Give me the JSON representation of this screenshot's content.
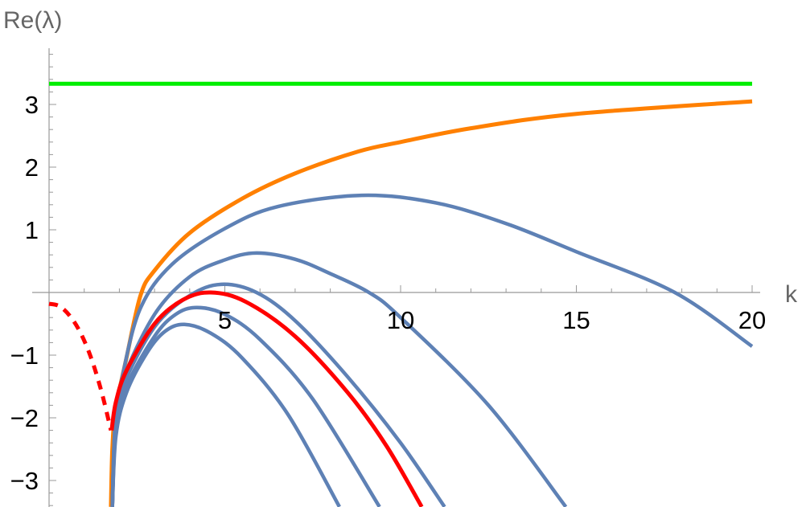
{
  "chart_data": {
    "type": "line",
    "title": "",
    "xlabel": "k",
    "ylabel": "Re(λ)",
    "xlim": [
      0,
      20
    ],
    "ylim": [
      -3.42,
      3.9
    ],
    "x_ticks": [
      5,
      10,
      15,
      20
    ],
    "y_ticks": [
      -3,
      -2,
      -1,
      1,
      2,
      3
    ],
    "x_tick_labels": [
      "5",
      "10",
      "15",
      "20"
    ],
    "y_tick_labels": [
      "−3",
      "−2",
      "−1",
      "1",
      "2",
      "3"
    ],
    "grid": false,
    "legend": "none",
    "series": [
      {
        "color": "#00ee00",
        "style": "solid",
        "points": [
          [
            0,
            3.33
          ],
          [
            20,
            3.33
          ]
        ]
      },
      {
        "color": "#ff8000",
        "style": "solid",
        "points": [
          [
            1.76,
            -3.42
          ],
          [
            1.8,
            -2.5
          ],
          [
            1.9,
            -1.85
          ],
          [
            2.2,
            -1.05
          ],
          [
            2.6,
            -0.05
          ],
          [
            3,
            0.35
          ],
          [
            4,
            0.95
          ],
          [
            5.5,
            1.5
          ],
          [
            7,
            1.9
          ],
          [
            8.8,
            2.25
          ],
          [
            10,
            2.4
          ],
          [
            12,
            2.62
          ],
          [
            15,
            2.85
          ],
          [
            20,
            3.05
          ]
        ]
      },
      {
        "color": "#5e81b5",
        "style": "solid",
        "points": [
          [
            1.8,
            -3.42
          ],
          [
            1.88,
            -2.1
          ],
          [
            2.1,
            -1.3
          ],
          [
            2.6,
            -0.25
          ],
          [
            3.5,
            0.45
          ],
          [
            5,
            1.02
          ],
          [
            6.5,
            1.37
          ],
          [
            8.9,
            1.55
          ],
          [
            11,
            1.43
          ],
          [
            13,
            1.1
          ],
          [
            15,
            0.65
          ],
          [
            17.8,
            0
          ],
          [
            20,
            -0.86
          ]
        ]
      },
      {
        "color": "#5e81b5",
        "style": "solid",
        "points": [
          [
            1.8,
            -3.42
          ],
          [
            1.88,
            -2.1
          ],
          [
            2.1,
            -1.4
          ],
          [
            3,
            -0.35
          ],
          [
            4,
            0.25
          ],
          [
            5,
            0.52
          ],
          [
            5.9,
            0.63
          ],
          [
            7,
            0.53
          ],
          [
            8,
            0.3
          ],
          [
            9.1,
            0
          ],
          [
            10,
            -0.4
          ],
          [
            12.5,
            -1.8
          ],
          [
            14.7,
            -3.42
          ]
        ]
      },
      {
        "color": "#5e81b5",
        "style": "solid",
        "points": [
          [
            1.8,
            -3.42
          ],
          [
            1.88,
            -2.15
          ],
          [
            2.1,
            -1.5
          ],
          [
            3,
            -0.55
          ],
          [
            4,
            -0.05
          ],
          [
            4.9,
            0.13
          ],
          [
            5.9,
            0
          ],
          [
            7,
            -0.45
          ],
          [
            8.5,
            -1.35
          ],
          [
            10,
            -2.4
          ],
          [
            11.25,
            -3.42
          ]
        ]
      },
      {
        "color": "#ff0000",
        "style": "solid",
        "points": [
          [
            1.78,
            -2.2
          ],
          [
            1.9,
            -1.75
          ],
          [
            2.2,
            -1.25
          ],
          [
            3,
            -0.5
          ],
          [
            3.8,
            -0.12
          ],
          [
            4.6,
            0
          ],
          [
            5.6,
            -0.15
          ],
          [
            7,
            -0.7
          ],
          [
            8.5,
            -1.6
          ],
          [
            9.6,
            -2.45
          ],
          [
            10.6,
            -3.42
          ]
        ]
      },
      {
        "color": "#5e81b5",
        "style": "solid",
        "points": [
          [
            1.8,
            -3.42
          ],
          [
            1.9,
            -2.2
          ],
          [
            2.2,
            -1.5
          ],
          [
            3,
            -0.7
          ],
          [
            3.6,
            -0.35
          ],
          [
            4.2,
            -0.24
          ],
          [
            5,
            -0.35
          ],
          [
            6,
            -0.75
          ],
          [
            7.5,
            -1.7
          ],
          [
            9.4,
            -3.42
          ]
        ]
      },
      {
        "color": "#5e81b5",
        "style": "solid",
        "points": [
          [
            1.8,
            -3.42
          ],
          [
            1.9,
            -2.3
          ],
          [
            2.2,
            -1.6
          ],
          [
            2.8,
            -0.95
          ],
          [
            3.3,
            -0.62
          ],
          [
            3.85,
            -0.51
          ],
          [
            4.6,
            -0.65
          ],
          [
            5.5,
            -1.05
          ],
          [
            6.8,
            -1.95
          ],
          [
            8.26,
            -3.42
          ]
        ]
      },
      {
        "color": "#ff0000",
        "style": "dashed",
        "points": [
          [
            0,
            -0.18
          ],
          [
            0.3,
            -0.22
          ],
          [
            0.6,
            -0.38
          ],
          [
            0.9,
            -0.65
          ],
          [
            1.2,
            -1.05
          ],
          [
            1.5,
            -1.6
          ],
          [
            1.76,
            -2.2
          ]
        ]
      }
    ]
  }
}
